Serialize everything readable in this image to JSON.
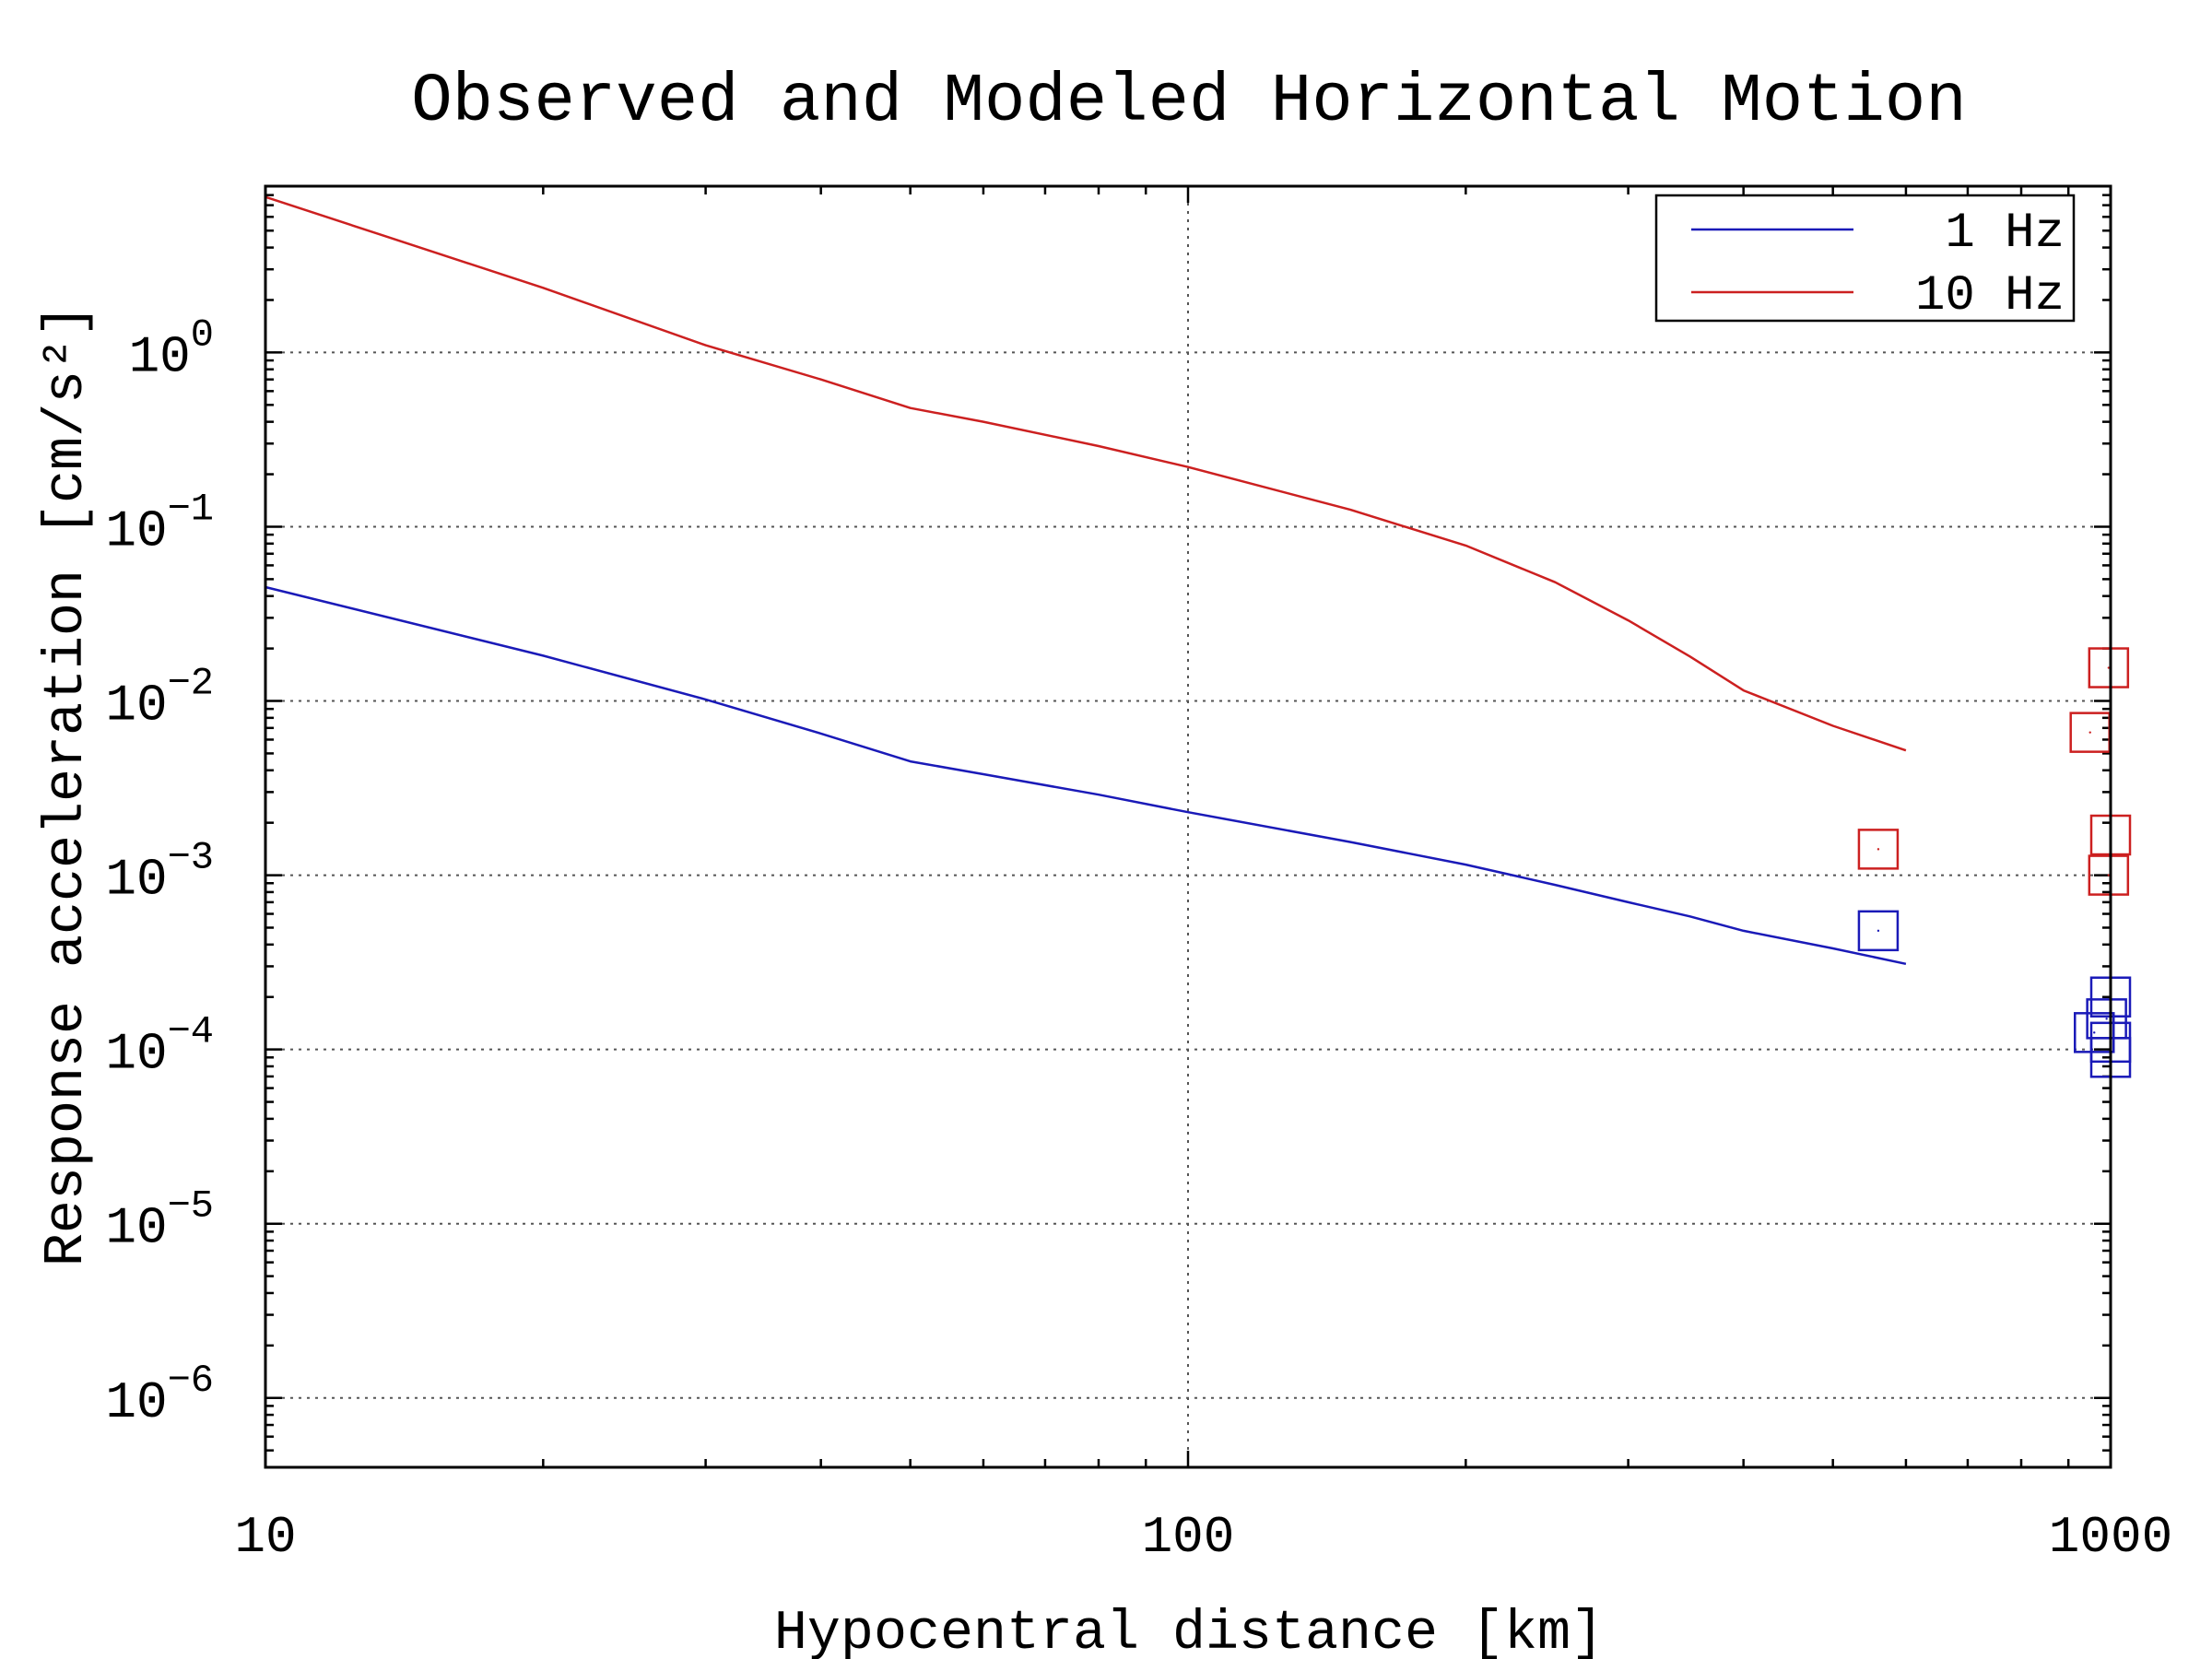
{
  "chart_data": {
    "type": "line",
    "title": "Observed and Modeled Horizontal Motion",
    "xlabel": "Hypocentral distance [km]",
    "ylabel": "Response acceleration [cm/s²]",
    "xscale": "log",
    "yscale": "log",
    "xlim": [
      10,
      1000
    ],
    "ylim": [
      4e-07,
      9
    ],
    "x_tick_labels": [
      "10",
      "100",
      "1000"
    ],
    "y_tick_labels": [
      {
        "base": "10",
        "exp": "0"
      },
      {
        "base": "10",
        "exp": "−1"
      },
      {
        "base": "10",
        "exp": "−2"
      },
      {
        "base": "10",
        "exp": "−3"
      },
      {
        "base": "10",
        "exp": "−4"
      },
      {
        "base": "10",
        "exp": "−5"
      },
      {
        "base": "10",
        "exp": "−6"
      }
    ],
    "grid": true,
    "legend_position": "top-right",
    "series": [
      {
        "name": "1 Hz",
        "color": "#1a1ab8",
        "x": [
          10,
          20,
          30,
          40,
          50,
          60,
          80,
          100,
          150,
          200,
          250,
          300,
          350,
          400,
          500,
          600
        ],
        "y": [
          0.045,
          0.0182,
          0.0102,
          0.0065,
          0.0045,
          0.0038,
          0.0029,
          0.0023,
          0.00155,
          0.00115,
          0.00088,
          0.0007,
          0.00058,
          0.00048,
          0.00038,
          0.00031
        ]
      },
      {
        "name": "10 Hz",
        "color": "#cc2020",
        "x": [
          10,
          20,
          30,
          40,
          50,
          60,
          80,
          100,
          150,
          200,
          250,
          300,
          350,
          400,
          500,
          600
        ],
        "y": [
          7.8,
          2.35,
          1.1,
          0.7,
          0.48,
          0.4,
          0.29,
          0.22,
          0.125,
          0.078,
          0.048,
          0.029,
          0.018,
          0.0115,
          0.0072,
          0.0052
        ]
      }
    ],
    "observed": [
      {
        "series": "1 Hz",
        "color": "#1a1ab8",
        "points": [
          [
            560,
            0.00048
          ],
          [
            960,
            0.000125
          ],
          [
            990,
            0.00015
          ],
          [
            1000,
            0.0002
          ],
          [
            1000,
            0.00011
          ],
          [
            1000,
            9e-05
          ]
        ]
      },
      {
        "series": "10 Hz",
        "color": "#cc2020",
        "points": [
          [
            560,
            0.00141
          ],
          [
            950,
            0.0066
          ],
          [
            995,
            0.0155
          ],
          [
            1000,
            0.0017
          ],
          [
            995,
            0.001
          ]
        ]
      }
    ]
  }
}
